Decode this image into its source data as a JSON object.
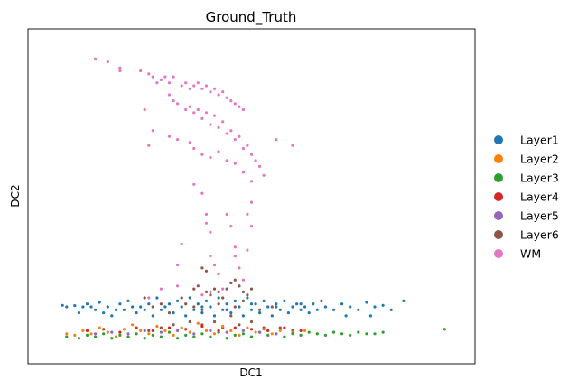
{
  "chart_data": {
    "type": "scatter",
    "title": "Ground_Truth",
    "xlabel": "DC1",
    "ylabel": "DC2",
    "xlim": [
      0,
      1
    ],
    "ylim": [
      0,
      1
    ],
    "grid": false,
    "legend_placement": "right-outside",
    "ticks": "none",
    "series": [
      {
        "name": "Layer1",
        "color": "#1f77b4"
      },
      {
        "name": "Layer2",
        "color": "#ff7f0e"
      },
      {
        "name": "Layer3",
        "color": "#2ca02c"
      },
      {
        "name": "Layer4",
        "color": "#d62728"
      },
      {
        "name": "Layer5",
        "color": "#9467bd"
      },
      {
        "name": "Layer6",
        "color": "#8c564b"
      },
      {
        "name": "WM",
        "color": "#e377c2"
      }
    ],
    "points": {
      "WM": [
        [
          0.12,
          0.96
        ],
        [
          0.15,
          0.95
        ],
        [
          0.18,
          0.93
        ],
        [
          0.18,
          0.92
        ],
        [
          0.23,
          0.92
        ],
        [
          0.25,
          0.91
        ],
        [
          0.26,
          0.9
        ],
        [
          0.27,
          0.88
        ],
        [
          0.28,
          0.89
        ],
        [
          0.29,
          0.9
        ],
        [
          0.3,
          0.88
        ],
        [
          0.31,
          0.9
        ],
        [
          0.33,
          0.87
        ],
        [
          0.34,
          0.88
        ],
        [
          0.35,
          0.86
        ],
        [
          0.36,
          0.87
        ],
        [
          0.37,
          0.88
        ],
        [
          0.38,
          0.86
        ],
        [
          0.39,
          0.87
        ],
        [
          0.4,
          0.85
        ],
        [
          0.41,
          0.86
        ],
        [
          0.42,
          0.84
        ],
        [
          0.43,
          0.85
        ],
        [
          0.44,
          0.83
        ],
        [
          0.45,
          0.82
        ],
        [
          0.46,
          0.81
        ],
        [
          0.47,
          0.8
        ],
        [
          0.48,
          0.79
        ],
        [
          0.3,
          0.84
        ],
        [
          0.31,
          0.82
        ],
        [
          0.32,
          0.81
        ],
        [
          0.34,
          0.79
        ],
        [
          0.35,
          0.8
        ],
        [
          0.36,
          0.78
        ],
        [
          0.37,
          0.79
        ],
        [
          0.38,
          0.76
        ],
        [
          0.39,
          0.78
        ],
        [
          0.4,
          0.74
        ],
        [
          0.41,
          0.77
        ],
        [
          0.42,
          0.73
        ],
        [
          0.43,
          0.75
        ],
        [
          0.44,
          0.71
        ],
        [
          0.45,
          0.72
        ],
        [
          0.46,
          0.69
        ],
        [
          0.47,
          0.7
        ],
        [
          0.48,
          0.66
        ],
        [
          0.49,
          0.67
        ],
        [
          0.5,
          0.64
        ],
        [
          0.51,
          0.62
        ],
        [
          0.52,
          0.6
        ],
        [
          0.53,
          0.57
        ],
        [
          0.24,
          0.79
        ],
        [
          0.25,
          0.67
        ],
        [
          0.26,
          0.72
        ],
        [
          0.3,
          0.7
        ],
        [
          0.32,
          0.69
        ],
        [
          0.35,
          0.68
        ],
        [
          0.36,
          0.66
        ],
        [
          0.38,
          0.64
        ],
        [
          0.4,
          0.63
        ],
        [
          0.42,
          0.65
        ],
        [
          0.44,
          0.62
        ],
        [
          0.46,
          0.61
        ],
        [
          0.48,
          0.58
        ],
        [
          0.5,
          0.55
        ],
        [
          0.56,
          0.69
        ],
        [
          0.6,
          0.67
        ],
        [
          0.36,
          0.54
        ],
        [
          0.38,
          0.51
        ],
        [
          0.39,
          0.44
        ],
        [
          0.39,
          0.41
        ],
        [
          0.4,
          0.38
        ],
        [
          0.4,
          0.3
        ],
        [
          0.41,
          0.27
        ],
        [
          0.42,
          0.24
        ],
        [
          0.44,
          0.44
        ],
        [
          0.45,
          0.4
        ],
        [
          0.46,
          0.33
        ],
        [
          0.46,
          0.3
        ],
        [
          0.47,
          0.26
        ],
        [
          0.48,
          0.22
        ],
        [
          0.49,
          0.32
        ],
        [
          0.49,
          0.44
        ],
        [
          0.5,
          0.48
        ],
        [
          0.5,
          0.4
        ],
        [
          0.47,
          0.2
        ],
        [
          0.43,
          0.19
        ],
        [
          0.4,
          0.18
        ],
        [
          0.38,
          0.17
        ],
        [
          0.33,
          0.34
        ],
        [
          0.32,
          0.27
        ],
        [
          0.32,
          0.2
        ],
        [
          0.28,
          0.19
        ],
        [
          0.25,
          0.16
        ]
      ],
      "Layer6": [
        [
          0.38,
          0.26
        ],
        [
          0.39,
          0.25
        ],
        [
          0.36,
          0.19
        ],
        [
          0.37,
          0.2
        ],
        [
          0.39,
          0.18
        ],
        [
          0.4,
          0.17
        ],
        [
          0.41,
          0.19
        ],
        [
          0.42,
          0.18
        ],
        [
          0.43,
          0.16
        ],
        [
          0.44,
          0.19
        ],
        [
          0.45,
          0.21
        ],
        [
          0.46,
          0.22
        ],
        [
          0.47,
          0.2
        ],
        [
          0.48,
          0.18
        ],
        [
          0.49,
          0.17
        ],
        [
          0.5,
          0.19
        ],
        [
          0.33,
          0.16
        ],
        [
          0.34,
          0.14
        ],
        [
          0.36,
          0.13
        ],
        [
          0.38,
          0.12
        ],
        [
          0.4,
          0.13
        ],
        [
          0.42,
          0.14
        ],
        [
          0.44,
          0.12
        ],
        [
          0.46,
          0.13
        ],
        [
          0.48,
          0.15
        ],
        [
          0.24,
          0.16
        ],
        [
          0.26,
          0.13
        ],
        [
          0.28,
          0.14
        ],
        [
          0.3,
          0.11
        ],
        [
          0.45,
          0.1
        ],
        [
          0.52,
          0.12
        ],
        [
          0.55,
          0.13
        ],
        [
          0.35,
          0.08
        ],
        [
          0.38,
          0.07
        ],
        [
          0.41,
          0.08
        ],
        [
          0.43,
          0.06
        ],
        [
          0.47,
          0.07
        ],
        [
          0.5,
          0.08
        ],
        [
          0.53,
          0.06
        ],
        [
          0.28,
          0.06
        ],
        [
          0.31,
          0.07
        ],
        [
          0.25,
          0.05
        ],
        [
          0.57,
          0.06
        ],
        [
          0.6,
          0.05
        ]
      ],
      "Layer1": [
        [
          0.04,
          0.135
        ],
        [
          0.05,
          0.13
        ],
        [
          0.07,
          0.134
        ],
        [
          0.08,
          0.11
        ],
        [
          0.09,
          0.13
        ],
        [
          0.1,
          0.14
        ],
        [
          0.12,
          0.12
        ],
        [
          0.13,
          0.145
        ],
        [
          0.15,
          0.13
        ],
        [
          0.16,
          0.1
        ],
        [
          0.18,
          0.14
        ],
        [
          0.19,
          0.12
        ],
        [
          0.2,
          0.15
        ],
        [
          0.22,
          0.11
        ],
        [
          0.23,
          0.13
        ],
        [
          0.25,
          0.14
        ],
        [
          0.26,
          0.1
        ],
        [
          0.27,
          0.16
        ],
        [
          0.28,
          0.12
        ],
        [
          0.3,
          0.14
        ],
        [
          0.31,
          0.11
        ],
        [
          0.32,
          0.15
        ],
        [
          0.33,
          0.13
        ],
        [
          0.34,
          0.1
        ],
        [
          0.35,
          0.16
        ],
        [
          0.36,
          0.12
        ],
        [
          0.37,
          0.14
        ],
        [
          0.38,
          0.11
        ],
        [
          0.39,
          0.15
        ],
        [
          0.4,
          0.13
        ],
        [
          0.41,
          0.1
        ],
        [
          0.42,
          0.16
        ],
        [
          0.43,
          0.12
        ],
        [
          0.44,
          0.14
        ],
        [
          0.45,
          0.11
        ],
        [
          0.46,
          0.15
        ],
        [
          0.47,
          0.13
        ],
        [
          0.48,
          0.1
        ],
        [
          0.49,
          0.16
        ],
        [
          0.5,
          0.12
        ],
        [
          0.51,
          0.14
        ],
        [
          0.52,
          0.11
        ],
        [
          0.53,
          0.15
        ],
        [
          0.54,
          0.13
        ],
        [
          0.55,
          0.1
        ],
        [
          0.56,
          0.14
        ],
        [
          0.57,
          0.12
        ],
        [
          0.58,
          0.15
        ],
        [
          0.59,
          0.11
        ],
        [
          0.6,
          0.13
        ],
        [
          0.61,
          0.14
        ],
        [
          0.62,
          0.12
        ],
        [
          0.63,
          0.13
        ],
        [
          0.64,
          0.11
        ],
        [
          0.65,
          0.14
        ],
        [
          0.66,
          0.12
        ],
        [
          0.68,
          0.13
        ],
        [
          0.7,
          0.12
        ],
        [
          0.72,
          0.14
        ],
        [
          0.74,
          0.13
        ],
        [
          0.76,
          0.12
        ],
        [
          0.78,
          0.145
        ],
        [
          0.8,
          0.13
        ],
        [
          0.82,
          0.135
        ],
        [
          0.84,
          0.12
        ],
        [
          0.87,
          0.15
        ],
        [
          0.79,
          0.1
        ],
        [
          0.73,
          0.1
        ],
        [
          0.67,
          0.15
        ],
        [
          0.24,
          0.12
        ],
        [
          0.21,
          0.13
        ],
        [
          0.17,
          0.12
        ],
        [
          0.14,
          0.11
        ],
        [
          0.11,
          0.13
        ],
        [
          0.29,
          0.13
        ],
        [
          0.38,
          0.13
        ],
        [
          0.44,
          0.12
        ],
        [
          0.5,
          0.14
        ],
        [
          0.56,
          0.13
        ],
        [
          0.62,
          0.14
        ]
      ],
      "Layer2": [
        [
          0.05,
          0.04
        ],
        [
          0.07,
          0.035
        ],
        [
          0.09,
          0.05
        ],
        [
          0.11,
          0.04
        ],
        [
          0.13,
          0.06
        ],
        [
          0.15,
          0.045
        ],
        [
          0.17,
          0.03
        ],
        [
          0.19,
          0.055
        ],
        [
          0.21,
          0.07
        ],
        [
          0.23,
          0.05
        ],
        [
          0.25,
          0.04
        ],
        [
          0.27,
          0.065
        ],
        [
          0.29,
          0.05
        ],
        [
          0.31,
          0.035
        ],
        [
          0.33,
          0.06
        ],
        [
          0.35,
          0.045
        ],
        [
          0.37,
          0.075
        ],
        [
          0.39,
          0.05
        ],
        [
          0.41,
          0.04
        ],
        [
          0.43,
          0.065
        ],
        [
          0.45,
          0.05
        ],
        [
          0.47,
          0.035
        ],
        [
          0.49,
          0.06
        ],
        [
          0.51,
          0.045
        ],
        [
          0.53,
          0.055
        ],
        [
          0.55,
          0.04
        ],
        [
          0.57,
          0.05
        ],
        [
          0.6,
          0.045
        ],
        [
          0.63,
          0.05
        ],
        [
          0.66,
          0.04
        ]
      ],
      "Layer3": [
        [
          0.05,
          0.03
        ],
        [
          0.08,
          0.025
        ],
        [
          0.1,
          0.035
        ],
        [
          0.12,
          0.03
        ],
        [
          0.14,
          0.04
        ],
        [
          0.16,
          0.025
        ],
        [
          0.18,
          0.035
        ],
        [
          0.2,
          0.03
        ],
        [
          0.22,
          0.04
        ],
        [
          0.24,
          0.025
        ],
        [
          0.26,
          0.035
        ],
        [
          0.28,
          0.03
        ],
        [
          0.3,
          0.045
        ],
        [
          0.32,
          0.025
        ],
        [
          0.34,
          0.035
        ],
        [
          0.36,
          0.03
        ],
        [
          0.38,
          0.04
        ],
        [
          0.4,
          0.03
        ],
        [
          0.42,
          0.045
        ],
        [
          0.44,
          0.025
        ],
        [
          0.46,
          0.035
        ],
        [
          0.48,
          0.04
        ],
        [
          0.5,
          0.03
        ],
        [
          0.52,
          0.045
        ],
        [
          0.54,
          0.035
        ],
        [
          0.56,
          0.04
        ],
        [
          0.58,
          0.03
        ],
        [
          0.6,
          0.04
        ],
        [
          0.62,
          0.035
        ],
        [
          0.64,
          0.045
        ],
        [
          0.66,
          0.04
        ],
        [
          0.68,
          0.035
        ],
        [
          0.7,
          0.045
        ],
        [
          0.72,
          0.04
        ],
        [
          0.74,
          0.035
        ],
        [
          0.76,
          0.045
        ],
        [
          0.78,
          0.04
        ],
        [
          0.8,
          0.04
        ],
        [
          0.82,
          0.045
        ],
        [
          0.97,
          0.055
        ]
      ],
      "Layer4": [
        [
          0.1,
          0.05
        ],
        [
          0.14,
          0.055
        ],
        [
          0.18,
          0.045
        ],
        [
          0.22,
          0.06
        ],
        [
          0.26,
          0.05
        ],
        [
          0.3,
          0.06
        ],
        [
          0.34,
          0.055
        ],
        [
          0.38,
          0.065
        ],
        [
          0.42,
          0.05
        ],
        [
          0.46,
          0.06
        ],
        [
          0.5,
          0.055
        ],
        [
          0.54,
          0.05
        ],
        [
          0.58,
          0.06
        ],
        [
          0.62,
          0.05
        ]
      ],
      "Layer5": [
        [
          0.12,
          0.04
        ],
        [
          0.16,
          0.045
        ],
        [
          0.2,
          0.04
        ],
        [
          0.24,
          0.05
        ],
        [
          0.28,
          0.045
        ],
        [
          0.32,
          0.05
        ],
        [
          0.36,
          0.04
        ],
        [
          0.4,
          0.05
        ],
        [
          0.44,
          0.045
        ],
        [
          0.48,
          0.05
        ],
        [
          0.52,
          0.045
        ],
        [
          0.56,
          0.04
        ]
      ]
    }
  }
}
